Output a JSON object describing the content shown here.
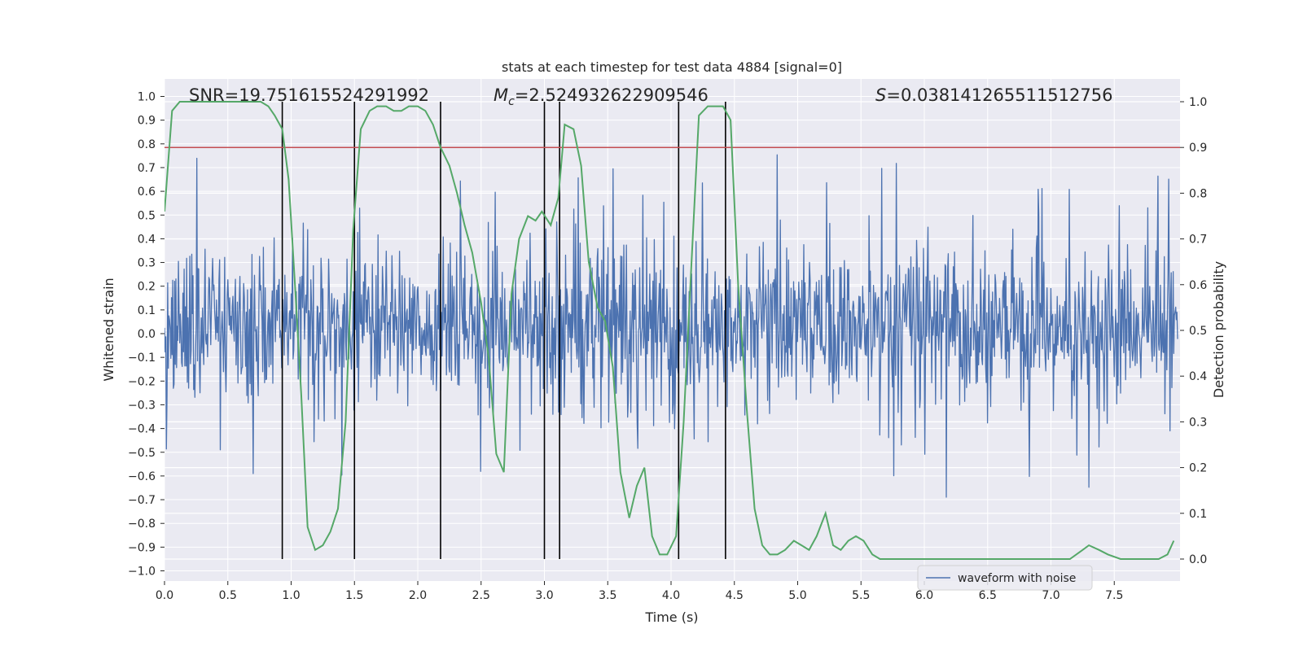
{
  "chart_data": {
    "type": "line",
    "title": "stats at each timestep for test data 4884 [signal=0]",
    "xlabel": "Time (s)",
    "ylabel": "Whitened strain",
    "y2label": "Detection probability",
    "xlim": [
      0,
      8.0
    ],
    "ylim": [
      -1.05,
      1.05
    ],
    "y2lim": [
      -0.05,
      1.05
    ],
    "xticks": [
      0.0,
      0.5,
      1.0,
      1.5,
      2.0,
      2.5,
      3.0,
      3.5,
      4.0,
      4.5,
      5.0,
      5.5,
      6.0,
      6.5,
      7.0,
      7.5
    ],
    "xtick_labels": [
      "0.0",
      "0.5",
      "1.0",
      "1.5",
      "2.0",
      "2.5",
      "3.0",
      "3.5",
      "4.0",
      "4.5",
      "5.0",
      "5.5",
      "6.0",
      "6.5",
      "7.0",
      "7.5"
    ],
    "yticks": [
      1.0,
      0.9,
      0.8,
      0.7,
      0.6,
      0.5,
      0.4,
      0.3,
      0.2,
      0.1,
      0.0,
      -0.1,
      -0.2,
      -0.3,
      -0.4,
      -0.5,
      -0.6,
      -0.7,
      -0.8,
      -0.9,
      -1.0
    ],
    "ytick_labels": [
      "1.0",
      "0.9",
      "0.8",
      "0.7",
      "0.6",
      "0.5",
      "0.4",
      "0.3",
      "0.2",
      "0.1",
      "0.0",
      "−0.1",
      "−0.2",
      "−0.3",
      "−0.4",
      "−0.5",
      "−0.6",
      "−0.7",
      "−0.8",
      "−0.9",
      "−1.0"
    ],
    "y2ticks": [
      1.0,
      0.9,
      0.8,
      0.7,
      0.6,
      0.5,
      0.4,
      0.3,
      0.2,
      0.1,
      0.0
    ],
    "y2tick_labels": [
      "1.0",
      "0.9",
      "0.8",
      "0.7",
      "0.6",
      "0.5",
      "0.4",
      "0.3",
      "0.2",
      "0.1",
      "0.0"
    ],
    "annotations": {
      "snr": "SNR=19.751615524291992",
      "mc_symbol": "M",
      "mc_sub": "c",
      "mc_value": "=2.524932622909546",
      "s_symbol": "S",
      "s_value": "=0.038141265511512756"
    },
    "legend": {
      "label": "waveform with noise",
      "loc": "lower-center-right"
    },
    "threshold": {
      "axis": "right",
      "value": 0.9
    },
    "event_markers": [
      0.93,
      1.5,
      2.18,
      3.0,
      3.12,
      4.06,
      4.43
    ],
    "noise_series": {
      "name": "waveform with noise",
      "t_start": 0.0,
      "t_end": 8.0,
      "num_points": 1600,
      "typical_envelope": [
        -0.36,
        0.42
      ]
    },
    "probability_series": {
      "name": "Detection probability",
      "x": [
        0.0,
        0.06,
        0.12,
        0.2,
        0.3,
        0.4,
        0.5,
        0.6,
        0.7,
        0.76,
        0.82,
        0.87,
        0.93,
        0.98,
        1.03,
        1.08,
        1.13,
        1.19,
        1.25,
        1.31,
        1.37,
        1.43,
        1.49,
        1.55,
        1.62,
        1.68,
        1.75,
        1.81,
        1.87,
        1.93,
        2.0,
        2.06,
        2.12,
        2.18,
        2.25,
        2.31,
        2.37,
        2.43,
        2.5,
        2.56,
        2.62,
        2.68,
        2.74,
        2.8,
        2.87,
        2.93,
        2.98,
        3.05,
        3.11,
        3.16,
        3.23,
        3.29,
        3.35,
        3.42,
        3.48,
        3.54,
        3.6,
        3.67,
        3.73,
        3.79,
        3.85,
        3.91,
        3.97,
        4.04,
        4.1,
        4.16,
        4.22,
        4.29,
        4.35,
        4.41,
        4.47,
        4.53,
        4.6,
        4.66,
        4.72,
        4.78,
        4.84,
        4.9,
        4.97,
        5.03,
        5.09,
        5.15,
        5.22,
        5.28,
        5.34,
        5.4,
        5.46,
        5.52,
        5.59,
        5.65,
        5.8,
        6.0,
        6.2,
        6.4,
        6.6,
        6.8,
        7.0,
        7.15,
        7.25,
        7.3,
        7.38,
        7.45,
        7.55,
        7.65,
        7.75,
        7.85,
        7.92,
        7.97
      ],
      "y": [
        0.76,
        0.98,
        1.0,
        1.0,
        1.0,
        1.0,
        1.0,
        1.0,
        1.0,
        1.0,
        0.99,
        0.97,
        0.94,
        0.83,
        0.6,
        0.36,
        0.07,
        0.02,
        0.03,
        0.06,
        0.11,
        0.3,
        0.72,
        0.94,
        0.98,
        0.99,
        0.99,
        0.98,
        0.98,
        0.99,
        0.99,
        0.98,
        0.95,
        0.9,
        0.86,
        0.8,
        0.73,
        0.67,
        0.56,
        0.44,
        0.23,
        0.19,
        0.58,
        0.7,
        0.75,
        0.74,
        0.76,
        0.73,
        0.79,
        0.95,
        0.94,
        0.86,
        0.65,
        0.55,
        0.52,
        0.42,
        0.19,
        0.09,
        0.16,
        0.2,
        0.05,
        0.01,
        0.01,
        0.05,
        0.3,
        0.64,
        0.97,
        0.99,
        0.99,
        0.99,
        0.96,
        0.6,
        0.32,
        0.11,
        0.03,
        0.01,
        0.01,
        0.02,
        0.04,
        0.03,
        0.02,
        0.05,
        0.1,
        0.03,
        0.02,
        0.04,
        0.05,
        0.04,
        0.01,
        0.0,
        0.0,
        0.0,
        0.0,
        0.0,
        0.0,
        0.0,
        0.0,
        0.0,
        0.02,
        0.03,
        0.02,
        0.01,
        0.0,
        0.0,
        0.0,
        0.0,
        0.01,
        0.04
      ]
    },
    "colors": {
      "background": "#eaeaf2",
      "grid": "#ffffff",
      "noise": "#4c72b0",
      "probability": "#55a868",
      "threshold": "#c44e52",
      "markers": "#000000",
      "text": "#262626"
    }
  }
}
